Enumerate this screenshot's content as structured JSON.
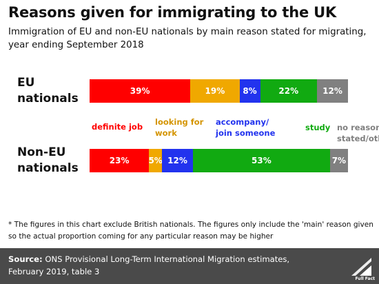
{
  "title": "Reasons given for immigrating to the UK",
  "subtitle": "Immigration of EU and non-EU nationals by main reason stated for migrating, year ending September 2018",
  "chart_data": {
    "type": "bar",
    "orientation": "horizontal",
    "stacked": true,
    "percent": true,
    "categories": [
      "EU nationals",
      "Non-EU nationals"
    ],
    "series": [
      {
        "name": "definite job",
        "color": "#ff0000",
        "values": [
          39,
          23
        ],
        "labels": [
          "39%",
          "23%"
        ]
      },
      {
        "name": "looking for work",
        "color": "#f0a800",
        "values": [
          19,
          5
        ],
        "labels": [
          "19%",
          "5%"
        ]
      },
      {
        "name": "accompany/ join someone",
        "color": "#2233ee",
        "values": [
          8,
          12
        ],
        "labels": [
          "8%",
          "12%"
        ]
      },
      {
        "name": "study",
        "color": "#11aa11",
        "values": [
          22,
          53
        ],
        "labels": [
          "22%",
          "53%"
        ]
      },
      {
        "name": "no reason stated/other",
        "color": "#808080",
        "values": [
          12,
          7
        ],
        "labels": [
          "12%",
          "7%"
        ]
      }
    ],
    "legend_placement": "between bars"
  },
  "group_labels": [
    {
      "line1": "EU",
      "line2": "nationals"
    },
    {
      "line1": "Non-EU",
      "line2": "nationals"
    }
  ],
  "category_labels": [
    {
      "line1": "definite job",
      "line2": ""
    },
    {
      "line1": "looking for",
      "line2": "work"
    },
    {
      "line1": "accompany/",
      "line2": "join someone"
    },
    {
      "line1": "study",
      "line2": ""
    },
    {
      "line1": "no reason",
      "line2": "stated/other"
    }
  ],
  "footnote": "* The figures in this chart exclude British nationals. The figures only include the 'main' reason given so the actual proportion coming for any particular reason may be higher",
  "source": {
    "label": "Source:",
    "text": " ONS Provisional Long-Term International Migration estimates, February 2019, table 3"
  },
  "logo": {
    "text": "Full Fact"
  }
}
